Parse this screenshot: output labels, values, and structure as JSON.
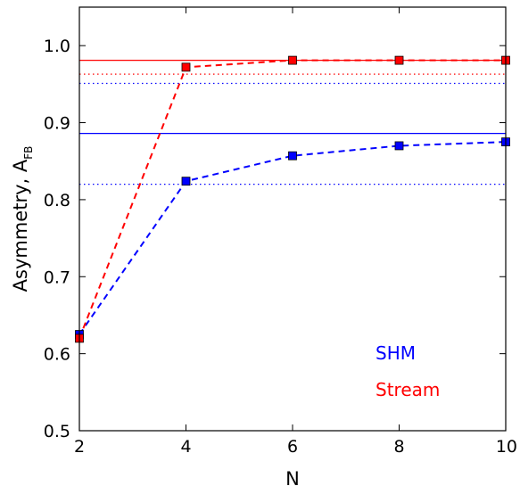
{
  "chart_data": {
    "type": "line",
    "xlabel": "N",
    "ylabel": "Asymmetry, A",
    "ylabel_sub": "FB",
    "xlim": [
      2,
      10
    ],
    "ylim": [
      0.5,
      1.05
    ],
    "xticks": [
      2,
      4,
      6,
      8,
      10
    ],
    "yticks": [
      0.5,
      0.6,
      0.7,
      0.8,
      0.9,
      1.0
    ],
    "ytick_labels": [
      "0.5",
      "0.6",
      "0.7",
      "0.8",
      "0.9",
      "1.0"
    ],
    "grid": false,
    "legend_placement": "bottom-right",
    "series": [
      {
        "name": "SHM",
        "color": "#0000ff",
        "x": [
          2,
          4,
          6,
          8,
          10
        ],
        "y": [
          0.625,
          0.824,
          0.857,
          0.87,
          0.875
        ],
        "asymptote": 0.886,
        "bound": 0.82
      },
      {
        "name": "Stream",
        "color": "#ff0000",
        "x": [
          2,
          4,
          6,
          8,
          10
        ],
        "y": [
          0.62,
          0.972,
          0.981,
          0.981,
          0.981
        ],
        "asymptote": 0.981,
        "bound": 0.963
      }
    ],
    "extra_dotted": [
      {
        "color": "#0000ff",
        "y": 0.951
      }
    ]
  }
}
